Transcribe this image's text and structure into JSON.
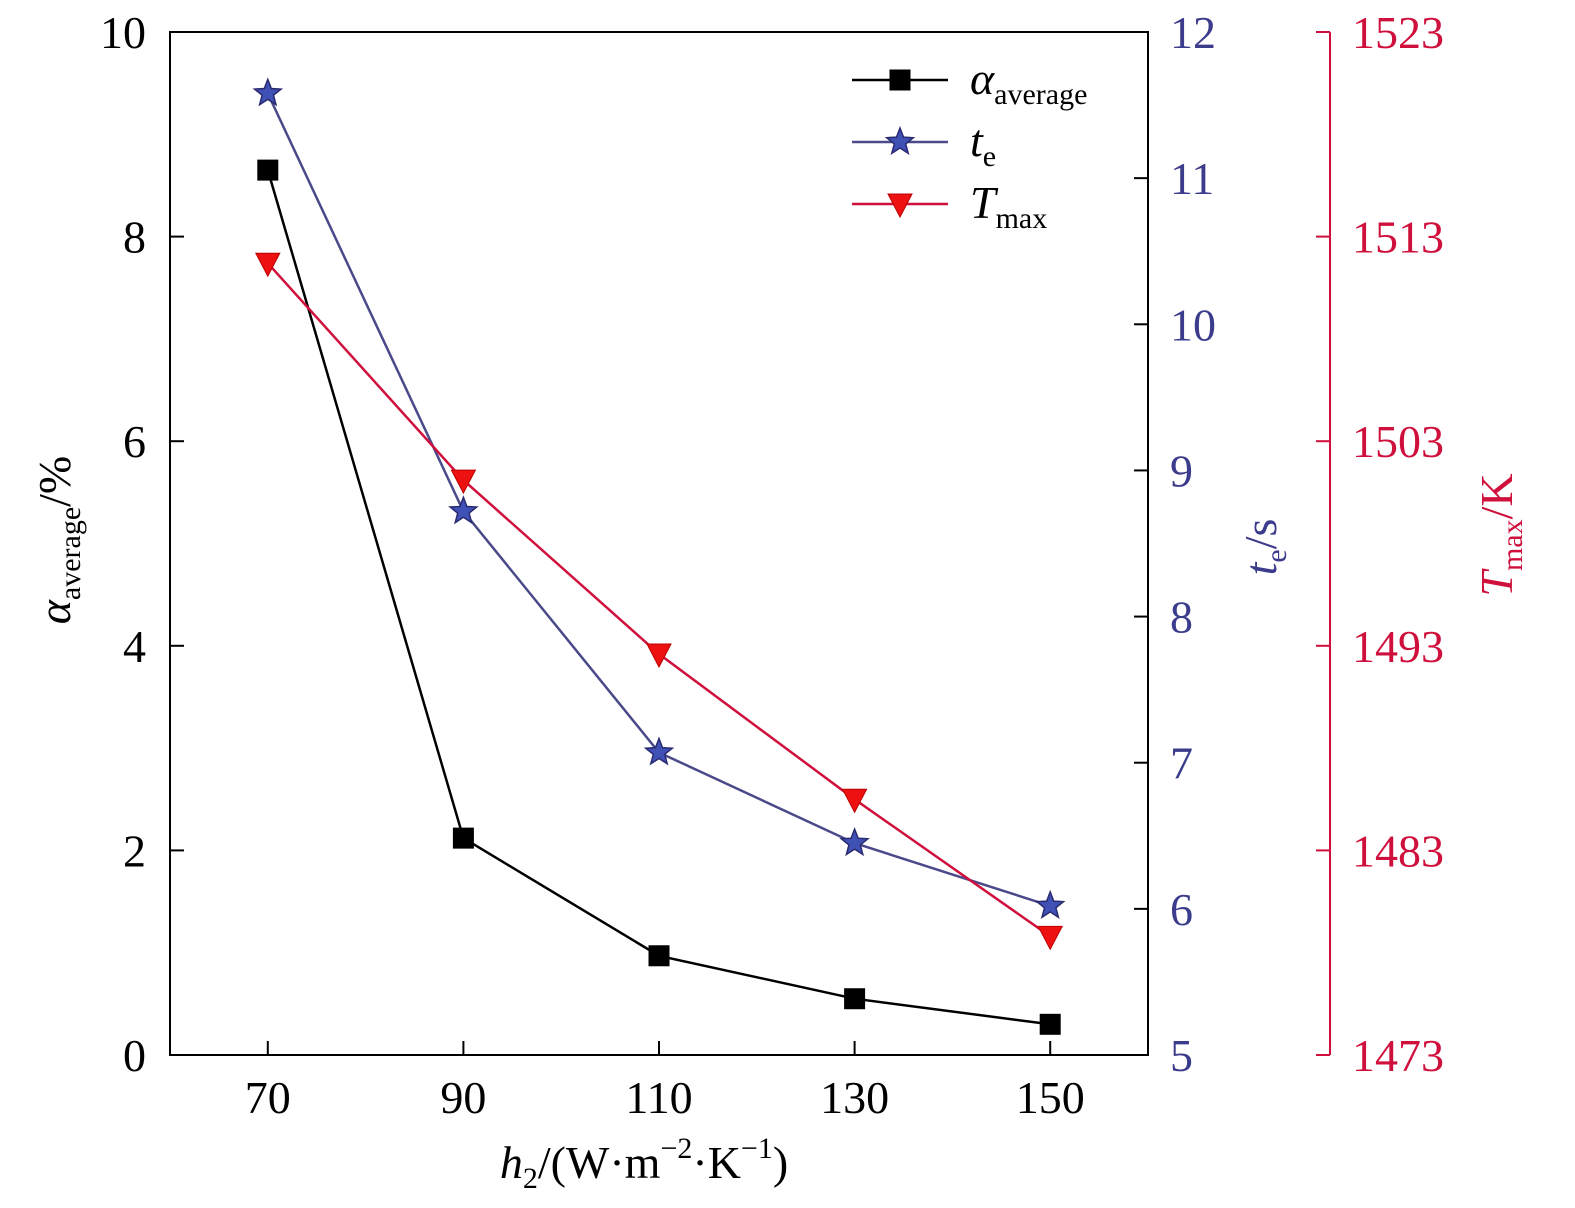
{
  "chart_data": {
    "type": "line",
    "x": [
      70,
      90,
      110,
      130,
      150
    ],
    "xlabel": "h2/(W·m−2·K−1)",
    "xticks": [
      "70",
      "90",
      "110",
      "130",
      "150"
    ],
    "xlim": [
      60,
      160
    ],
    "axes": {
      "left": {
        "label": "αaverage/%",
        "ticks": [
          "0",
          "2",
          "4",
          "6",
          "8",
          "10"
        ],
        "ylim": [
          0,
          10
        ],
        "color": "#000000"
      },
      "right1": {
        "label": "te/s",
        "ticks": [
          "5",
          "6",
          "7",
          "8",
          "9",
          "10",
          "11",
          "12"
        ],
        "ylim": [
          5,
          12
        ],
        "color": "#3c3c8c"
      },
      "right2": {
        "label": "Tmax/K",
        "ticks": [
          "1473",
          "1483",
          "1493",
          "1503",
          "1513",
          "1523"
        ],
        "ylim": [
          1473,
          1523
        ],
        "color": "#d0103c"
      }
    },
    "series": [
      {
        "name": "αaverage",
        "axis": "left",
        "values": [
          8.65,
          2.12,
          0.97,
          0.55,
          0.3
        ],
        "color": "#000000",
        "marker": "square"
      },
      {
        "name": "te",
        "axis": "right1",
        "values": [
          11.58,
          8.72,
          7.07,
          6.45,
          6.02
        ],
        "color": "#3f51b5",
        "line_color": "#4a4a8a",
        "marker": "star"
      },
      {
        "name": "Tmax",
        "axis": "right2",
        "values": [
          1511.7,
          1501.1,
          1492.6,
          1485.5,
          1478.8
        ],
        "color": "#ee1111",
        "line_color": "#d0103c",
        "marker": "triangle-down"
      }
    ],
    "legend": {
      "placement": "top-right",
      "entries": [
        {
          "main": "α",
          "sub": "average"
        },
        {
          "main": "t",
          "sub": "e"
        },
        {
          "main": "T",
          "sub": "max"
        }
      ]
    },
    "grid": false
  }
}
